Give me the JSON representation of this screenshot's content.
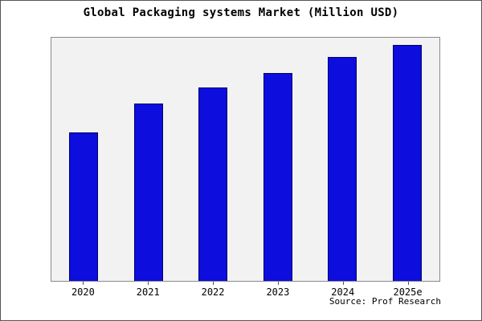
{
  "chart_data": {
    "type": "bar",
    "title": "Global Packaging systems Market (Million USD)",
    "categories": [
      "2020",
      "2021",
      "2022",
      "2023",
      "2024",
      "2025e"
    ],
    "values": [
      63,
      75,
      82,
      88,
      95,
      100
    ],
    "xlabel": "",
    "ylabel": "",
    "ylim": [
      0,
      103
    ],
    "grid": false,
    "legend": null,
    "bar_color": "#0d0ddd",
    "bar_edge_color": "#00006e",
    "plot_bg": "#f2f2f2",
    "note": "No y-axis tick labels are shown in the chart; values are relative estimates of bar heights with the tallest bar (2025e) = 100."
  },
  "footer": {
    "source": "Source: Prof Research"
  }
}
